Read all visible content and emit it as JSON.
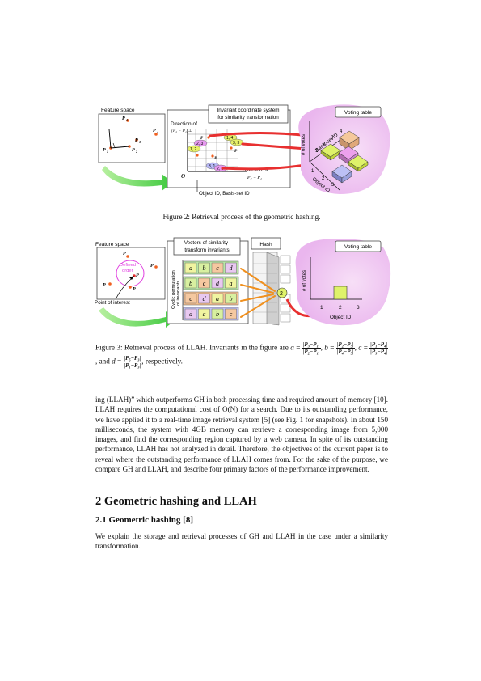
{
  "figure2": {
    "feature_space_label": "Feature space",
    "points": [
      "P₄",
      "P₃",
      "P₄",
      "P₁",
      "P₂"
    ],
    "p_labels": {
      "p4": "P",
      "p3": "P",
      "p5": "P",
      "p1": "P",
      "p2": "P"
    },
    "direction_of_label": "Direction of",
    "perp_label": "(P₂ − P₁)⊥",
    "invariant_box": "Invariant coordinate system for similarity transformation",
    "invariant_line1": "Invariant coordinate system",
    "invariant_line2": "for similarity transformation",
    "origin_label": "O",
    "direction_of_2": "Direction of",
    "direction_vec": "P₂ − P₁",
    "object_basis_label": "Object ID, Basis-set ID",
    "voting_table_label": "Voting table",
    "votes_axis": "# of votes",
    "basis_axis": "Basis-set ID",
    "object_axis": "Object ID",
    "ticks_basis": [
      "1",
      "2",
      "3",
      "4"
    ],
    "ticks_object": [
      "1",
      "2",
      "3"
    ],
    "cells": [
      "1, 2",
      "2, 3",
      "1, 4",
      "3, 3",
      "3, 1",
      "2, 3"
    ],
    "caption": "Figure 2: Retrieval process of the geometric hashing."
  },
  "figure3": {
    "feature_space_label": "Feature space",
    "defined_order_line1": "Defined",
    "defined_order_line2": "order",
    "point_of_interest": "Point of interest",
    "vectors_line1": "Vectors of similarity-",
    "vectors_line2": "transform invariants",
    "cyclic_line1": "Cyclic permutation",
    "cyclic_line2": "of invariants",
    "rows": [
      [
        "a",
        "b",
        "c",
        "d"
      ],
      [
        "b",
        "c",
        "d",
        "a"
      ],
      [
        "c",
        "d",
        "a",
        "b"
      ],
      [
        "d",
        "a",
        "b",
        "c"
      ]
    ],
    "hash_label": "Hash",
    "hash_index": "2",
    "voting_table_label": "Voting table",
    "votes_axis": "# of votes",
    "ticks": [
      "1",
      "2",
      "3"
    ],
    "object_axis": "Object ID",
    "caption_text": "Figure 3: Retrieval process of LLAH. Invariants in the figure are",
    "caption_end": ", respectively."
  },
  "body": {
    "para1": "ing (LLAH)” which outperforms GH in both processing time and required amount of memory [10]. LLAH requires the computational cost of O(N) for a search. Due to its outstanding performance, we have applied it to a real-time image retrieval system [5] (see Fig. 1 for snapshots). In about 150 milliseconds, the system with 4GB memory can retrieve a corresponding image from 5,000 images, and find the corresponding region captured by a web camera. In spite of its outstanding performance, LLAH has not analyzed in detail. Therefore, the objectives of the current paper is to reveal where the outstanding performance of LLAH comes from. For the sake of the purpose, we compare GH and LLAH, and describe four primary factors of the performance improvement.",
    "section2": "2   Geometric hashing and LLAH",
    "section21": "2.1   Geometric hashing [8]",
    "para2": "We explain the storage and retrieval processes of GH and LLAH in the case under a similarity transformation."
  }
}
